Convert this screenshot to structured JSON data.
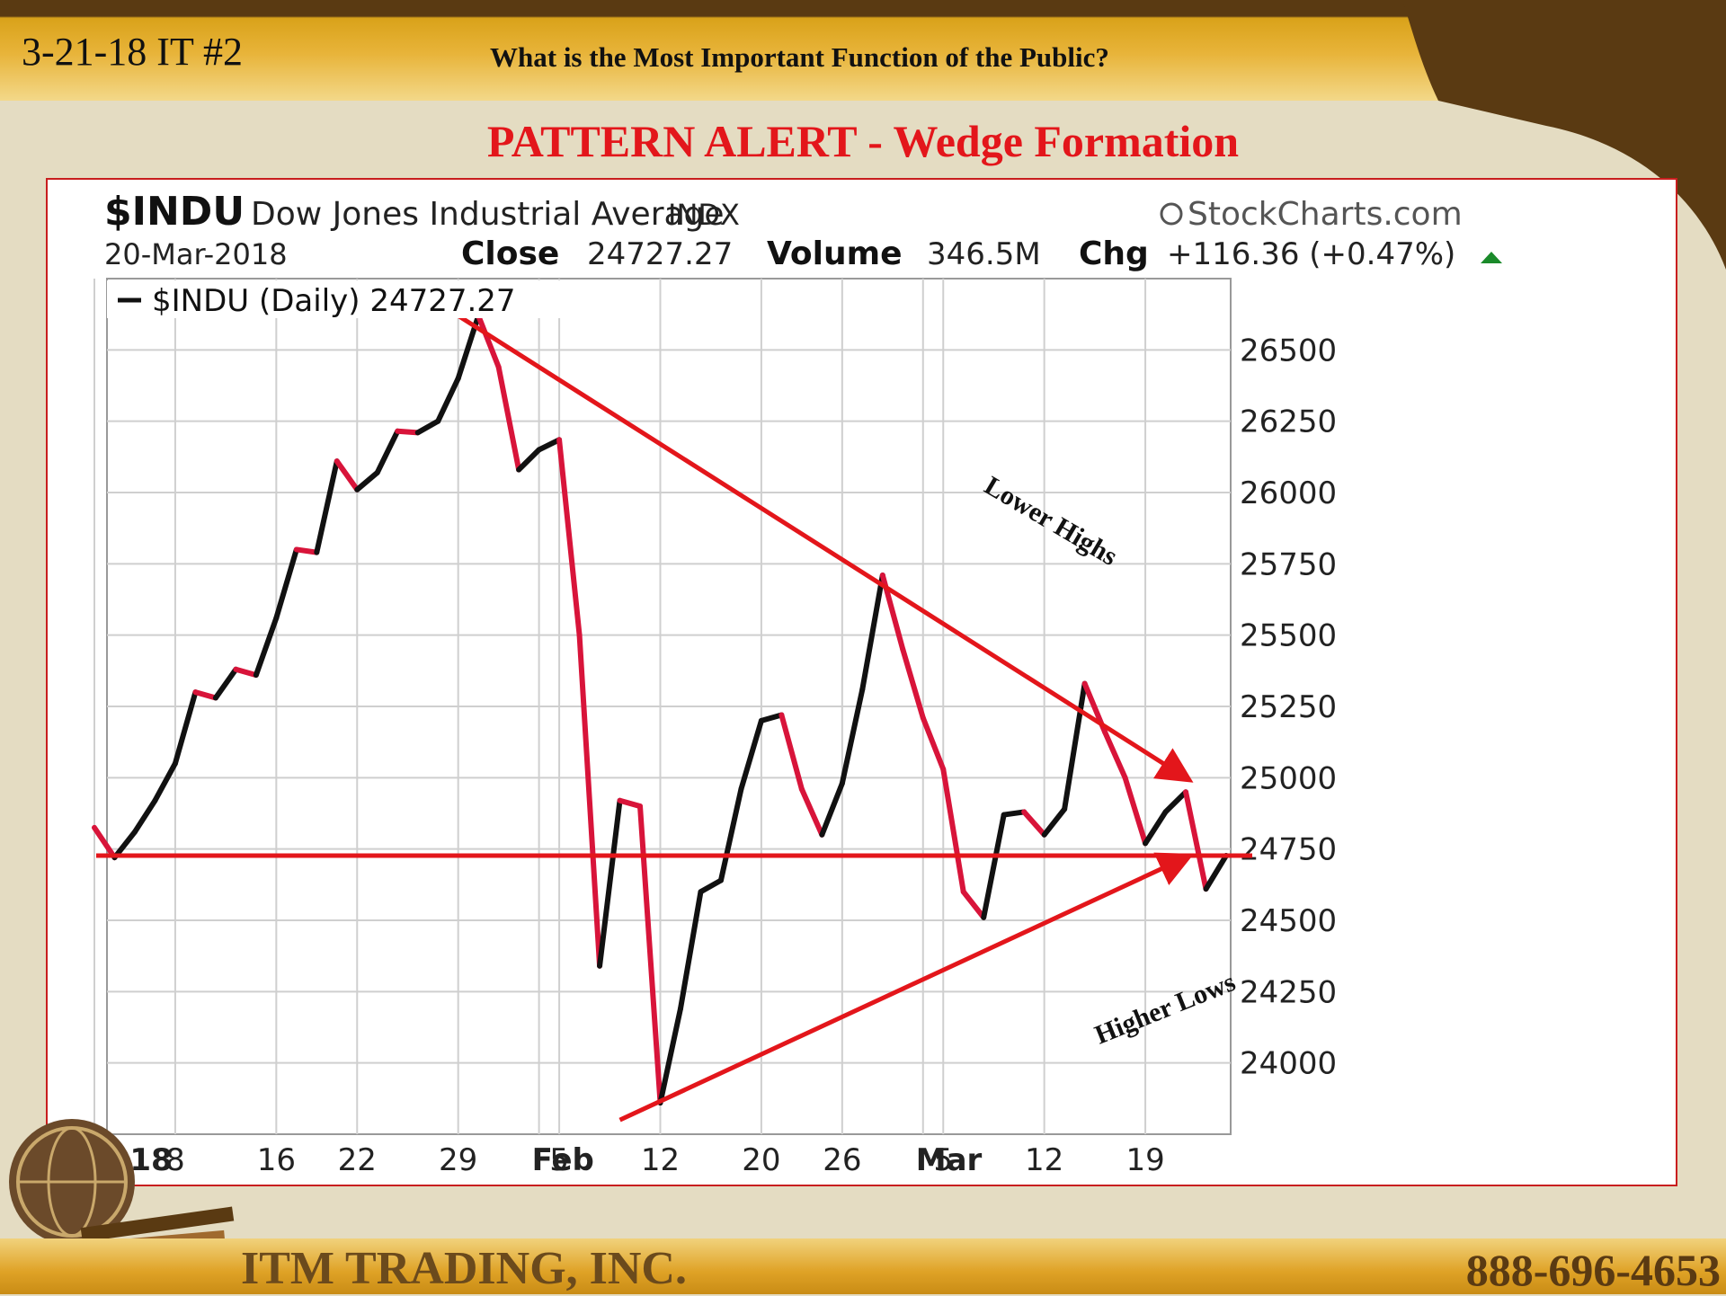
{
  "header": {
    "date_code": "3-21-18 IT #2",
    "title": "What is the Most Important  Function of the Public?"
  },
  "pattern_title": "PATTERN ALERT - Wedge Formation",
  "chart_header": {
    "symbol": "$INDU",
    "name": "Dow Jones Industrial Average",
    "exchange": "INDX",
    "source": "StockCharts.com",
    "date": "20-Mar-2018",
    "close_label": "Close",
    "close_value": "24727.27",
    "volume_label": "Volume",
    "volume_value": "346.5M",
    "chg_label": "Chg",
    "chg_value": "+116.36 (+0.47%)",
    "legend": "$INDU (Daily) 24727.27"
  },
  "annotations": {
    "lower_highs": "Lower Highs",
    "higher_lows": "Higher Lows"
  },
  "footer": {
    "company": "ITM TRADING, INC.",
    "phone": "888-696-4653"
  },
  "colors": {
    "trend_line": "#e3161b",
    "up_segment": "#111111",
    "down_segment": "#d8143a",
    "up_arrow": "#1a8a2a"
  },
  "chart_data": {
    "type": "line",
    "title": "$INDU Dow Jones Industrial Average INDX",
    "ylim": [
      23750,
      26750
    ],
    "y_ticks": [
      24000,
      24250,
      24500,
      24750,
      25000,
      25250,
      25500,
      25750,
      26000,
      26250,
      26500
    ],
    "x_tick_labels": [
      {
        "label": "2018",
        "day": 0,
        "bold": true
      },
      {
        "label": "8",
        "day": 4,
        "bold": false
      },
      {
        "label": "16",
        "day": 9,
        "bold": false
      },
      {
        "label": "22",
        "day": 13,
        "bold": false
      },
      {
        "label": "29",
        "day": 18,
        "bold": false
      },
      {
        "label": "Feb",
        "day": 22,
        "bold": true
      },
      {
        "label": "5",
        "day": 23,
        "bold": false
      },
      {
        "label": "12",
        "day": 28,
        "bold": false
      },
      {
        "label": "20",
        "day": 33,
        "bold": false
      },
      {
        "label": "26",
        "day": 37,
        "bold": false
      },
      {
        "label": "Mar",
        "day": 41,
        "bold": true
      },
      {
        "label": "5",
        "day": 42,
        "bold": false
      },
      {
        "label": "12",
        "day": 47,
        "bold": false
      },
      {
        "label": "19",
        "day": 52,
        "bold": false
      }
    ],
    "series": [
      {
        "name": "$INDU (Daily)",
        "values": [
          24825,
          24720,
          24810,
          24920,
          25050,
          25300,
          25280,
          25380,
          25360,
          25560,
          25800,
          25790,
          26110,
          26010,
          26070,
          26215,
          26210,
          26250,
          26400,
          26620,
          26440,
          26080,
          26150,
          26185,
          25500,
          24340,
          24920,
          24900,
          23860,
          24190,
          24600,
          24640,
          24960,
          25200,
          25220,
          24960,
          24800,
          24980,
          25310,
          25710,
          25450,
          25210,
          25030,
          24600,
          24510,
          24870,
          24880,
          24800,
          24890,
          25330,
          25160,
          25000,
          24770,
          24880,
          24950,
          24610,
          24727
        ]
      }
    ],
    "reference_line": 24727,
    "trend_lines": [
      {
        "label": "Lower Highs",
        "from_day": 18,
        "from_value": 26620,
        "to_day": 54,
        "to_value": 25000
      },
      {
        "label": "Higher Lows",
        "from_day": 26,
        "from_value": 23800,
        "to_day": 54,
        "to_value": 24720
      }
    ]
  }
}
